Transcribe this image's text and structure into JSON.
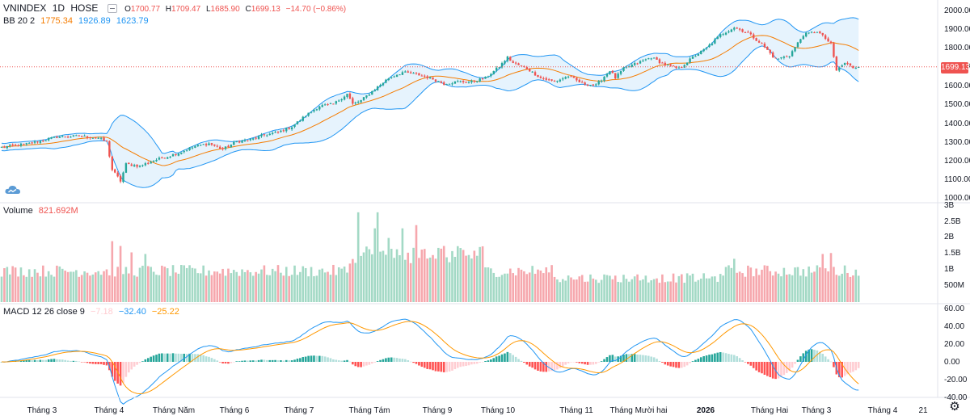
{
  "header": {
    "symbol": "VNINDEX",
    "interval": "1D",
    "exchange": "HOSE",
    "ohlc": {
      "o_label": "O",
      "o": "1700.77",
      "h_label": "H",
      "h": "1709.47",
      "l_label": "L",
      "l": "1685.90",
      "c_label": "C",
      "c": "1699.13",
      "change": "−14.70 (−0.86%)"
    }
  },
  "bb_legend": {
    "name": "BB 20 2",
    "basis": "1775.34",
    "upper": "1926.89",
    "lower": "1623.79"
  },
  "volume_legend": {
    "name": "Volume",
    "value": "821.692M"
  },
  "macd_legend": {
    "name": "MACD 12 26 close 9",
    "hist": "−7.18",
    "macd": "−32.40",
    "signal": "−25.22"
  },
  "last_price": "1699.13",
  "colors": {
    "up": "#26a69a",
    "down": "#ef5350",
    "vol_up": "#a3d9c5",
    "vol_down": "#f6a7ad",
    "bb_band": "#2196f3",
    "bb_basis": "#f57c00",
    "bb_fill": "#e3f2fd",
    "macd_line": "#2196f3",
    "signal_line": "#ff9800",
    "hist_pos_strong": "#26a69a",
    "hist_pos_weak": "#b2dfdb",
    "hist_neg_strong": "#ff5252",
    "hist_neg_weak": "#ffcdd2",
    "last_price_line": "#ef5350"
  },
  "icons": {
    "settings": "gear-icon",
    "logo": "cloud-logo-icon",
    "minimize": "minimize-icon"
  },
  "chart_data": [
    {
      "type": "candlestick",
      "title": "VNINDEX 1D HOSE",
      "y_axis_ticks": [
        "2000.00",
        "1900.00",
        "1800.00",
        "1700.00",
        "1600.00",
        "1500.00",
        "1400.00",
        "1300.00",
        "1200.00",
        "1100.00",
        "1000.00"
      ],
      "ylim": [
        1000,
        2000
      ],
      "x_axis_labels": [
        "Tháng 3",
        "Tháng 4",
        "Tháng Năm",
        "Tháng 6",
        "Tháng 7",
        "Tháng Tám",
        "Tháng 9",
        "Tháng 10",
        "Tháng 11",
        "Tháng Mười hai",
        "2026",
        "Tháng Hai",
        "Tháng 3",
        "Tháng 4",
        "21"
      ],
      "x_label_bold": [
        false,
        false,
        false,
        false,
        false,
        false,
        false,
        false,
        false,
        false,
        true,
        false,
        false,
        false,
        false
      ],
      "close_keypoints": [
        [
          0,
          1270
        ],
        [
          10,
          1290
        ],
        [
          20,
          1325
        ],
        [
          28,
          1330
        ],
        [
          35,
          1320
        ],
        [
          38,
          1300
        ],
        [
          40,
          1150
        ],
        [
          43,
          1090
        ],
        [
          45,
          1180
        ],
        [
          50,
          1170
        ],
        [
          55,
          1200
        ],
        [
          60,
          1220
        ],
        [
          65,
          1245
        ],
        [
          70,
          1275
        ],
        [
          75,
          1290
        ],
        [
          80,
          1260
        ],
        [
          85,
          1300
        ],
        [
          90,
          1310
        ],
        [
          95,
          1335
        ],
        [
          100,
          1350
        ],
        [
          105,
          1380
        ],
        [
          110,
          1440
        ],
        [
          115,
          1490
        ],
        [
          120,
          1500
        ],
        [
          125,
          1555
        ],
        [
          127,
          1500
        ],
        [
          130,
          1520
        ],
        [
          135,
          1580
        ],
        [
          140,
          1640
        ],
        [
          145,
          1670
        ],
        [
          150,
          1660
        ],
        [
          155,
          1640
        ],
        [
          160,
          1610
        ],
        [
          165,
          1620
        ],
        [
          170,
          1620
        ],
        [
          175,
          1640
        ],
        [
          180,
          1700
        ],
        [
          183,
          1750
        ],
        [
          185,
          1720
        ],
        [
          190,
          1690
        ],
        [
          195,
          1640
        ],
        [
          200,
          1620
        ],
        [
          205,
          1650
        ],
        [
          210,
          1610
        ],
        [
          215,
          1600
        ],
        [
          220,
          1680
        ],
        [
          222,
          1640
        ],
        [
          225,
          1690
        ],
        [
          230,
          1720
        ],
        [
          235,
          1750
        ],
        [
          240,
          1710
        ],
        [
          245,
          1690
        ],
        [
          250,
          1750
        ],
        [
          255,
          1800
        ],
        [
          260,
          1870
        ],
        [
          265,
          1910
        ],
        [
          270,
          1880
        ],
        [
          275,
          1820
        ],
        [
          280,
          1740
        ],
        [
          285,
          1760
        ],
        [
          290,
          1870
        ],
        [
          295,
          1890
        ],
        [
          298,
          1850
        ],
        [
          300,
          1820
        ],
        [
          302,
          1680
        ],
        [
          305,
          1720
        ],
        [
          308,
          1695
        ],
        [
          310,
          1699.13
        ]
      ],
      "bollinger": {
        "period": 20,
        "stddev": 2,
        "basis_last": 1775.34,
        "upper_last": 1926.89,
        "lower_last": 1623.79
      },
      "last_close": 1699.13
    },
    {
      "type": "bar",
      "title": "Volume",
      "y_axis_ticks": [
        "3B",
        "2.5B",
        "2B",
        "1.5B",
        "1B",
        "500M"
      ],
      "ylim": [
        0,
        3000
      ],
      "unit": "M",
      "last_value": 821.692,
      "spikes": [
        [
          40,
          1900
        ],
        [
          43,
          1750
        ],
        [
          47,
          1550
        ],
        [
          52,
          1500
        ],
        [
          129,
          2800
        ],
        [
          136,
          2800
        ],
        [
          135,
          2300
        ],
        [
          140,
          2000
        ],
        [
          145,
          2300
        ],
        [
          150,
          2400
        ],
        [
          160,
          1750
        ],
        [
          265,
          1350
        ],
        [
          297,
          1500
        ],
        [
          300,
          1530
        ]
      ]
    },
    {
      "type": "line",
      "title": "MACD 12 26 close 9",
      "series_names": [
        "MACD",
        "Signal",
        "Histogram"
      ],
      "y_axis_ticks": [
        "60.00",
        "40.00",
        "20.00",
        "0.00",
        "-20.00",
        "-40.00"
      ],
      "ylim": [
        -45,
        65
      ],
      "last_values": {
        "histogram": -7.18,
        "macd": -32.4,
        "signal": -25.22
      }
    }
  ]
}
